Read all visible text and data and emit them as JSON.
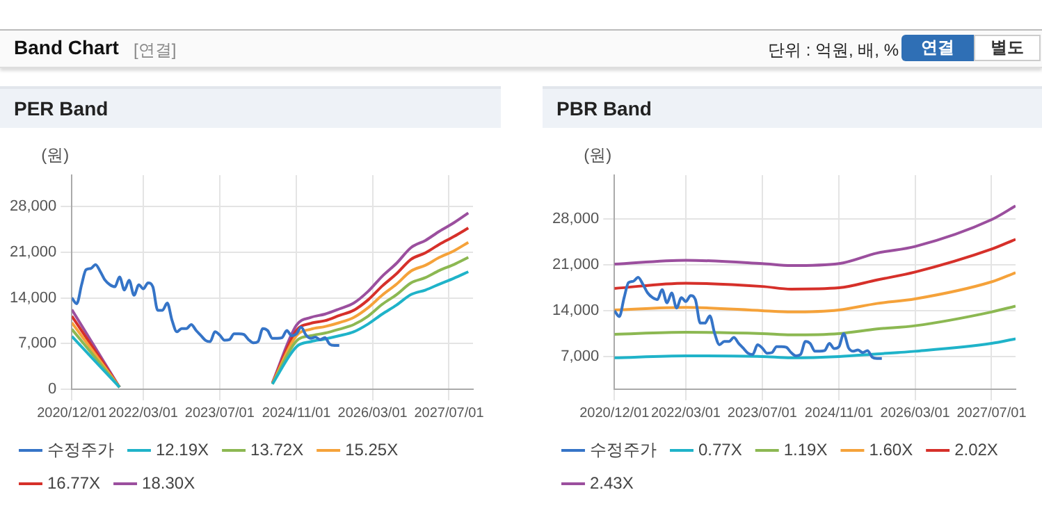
{
  "chart_data": [
    {
      "type": "line",
      "title": "PER Band",
      "ylabel": "(원)",
      "annotations": [
        "Band Chart",
        "[연결]",
        "단위 : 억원, 배, %",
        "연결",
        "별도"
      ],
      "grid": true,
      "legend": "bottom",
      "marker": "none",
      "xlim": [
        "2020-12-01",
        "2027-12-01"
      ],
      "xticks": [
        {
          "value": "2020-12-01",
          "label": "2020/12/01"
        },
        {
          "value": "2022-03-01",
          "label": "2022/03/01"
        },
        {
          "value": "2023-07-01",
          "label": "2023/07/01"
        },
        {
          "value": "2024-11-01",
          "label": "2024/11/01"
        },
        {
          "value": "2026-03-01",
          "label": "2026/03/01"
        },
        {
          "value": "2027-07-01",
          "label": "2027/07/01"
        }
      ],
      "ylim": [
        0,
        32800
      ],
      "yticks": [
        0,
        {
          "value": 7000,
          "label": "7,000"
        },
        {
          "value": 14000,
          "label": "14,000"
        },
        {
          "value": 21000,
          "label": "21,000"
        },
        {
          "value": 28000,
          "label": "28,000"
        }
      ],
      "x": [
        "2020-12",
        "2021-01",
        "2021-02",
        "2021-03",
        "2021-04",
        "2021-05",
        "2021-06",
        "2021-07",
        "2021-08",
        "2021-09",
        "2021-10",
        "2021-11",
        "2021-12",
        "2022-01",
        "2022-02",
        "2022-03",
        "2022-04",
        "2022-05",
        "2022-06",
        "2022-07",
        "2022-08",
        "2022-09",
        "2022-10",
        "2022-11",
        "2022-12",
        "2023-01",
        "2023-02",
        "2023-03",
        "2023-04",
        "2023-05",
        "2023-06",
        "2023-07",
        "2023-08",
        "2023-09",
        "2023-10",
        "2023-11",
        "2023-12",
        "2024-01",
        "2024-02",
        "2024-03",
        "2024-04",
        "2024-05",
        "2024-06",
        "2024-07",
        "2024-08",
        "2024-09",
        "2024-10",
        "2024-11",
        "2024-12",
        "2025-01",
        "2025-02",
        "2025-03",
        "2025-04",
        "2025-05",
        "2025-06",
        "2025-07",
        "2025-08"
      ],
      "series": [
        {
          "name": "수정주가",
          "color": "#3574c7",
          "values": [
            14000,
            13100,
            16000,
            18300,
            18500,
            19100,
            18000,
            16700,
            16000,
            15700,
            17200,
            15200,
            16700,
            14400,
            16000,
            15400,
            16300,
            15700,
            12100,
            12100,
            13200,
            10500,
            8800,
            9300,
            9300,
            9900,
            9000,
            8300,
            7500,
            7300,
            8800,
            8300,
            7500,
            7600,
            8500,
            8500,
            8400,
            7600,
            7100,
            7300,
            9300,
            9000,
            7800,
            7800,
            7900,
            9000,
            8200,
            8500,
            9500,
            8300,
            7800,
            8000,
            7600,
            7900,
            6900,
            6700,
            6700
          ]
        },
        {
          "name": "12.19X",
          "color": "#1fb3c9",
          "x": [
            "2020-12",
            "2021-10",
            "2023-01",
            "2024-06",
            "2024-11",
            "2025-02",
            "2025-05",
            "2025-08",
            "2025-11",
            "2026-02",
            "2026-05",
            "2026-08",
            "2026-11",
            "2027-02",
            "2027-05",
            "2027-08",
            "2027-11"
          ],
          "values": [
            8100,
            300,
            null,
            800,
            6500,
            7300,
            7700,
            8200,
            8800,
            10000,
            11500,
            12900,
            14500,
            15200,
            16100,
            17000,
            18000
          ]
        },
        {
          "name": "13.72X",
          "color": "#8cb852",
          "x": [
            "2020-12",
            "2021-10",
            "2023-01",
            "2024-06",
            "2024-11",
            "2025-02",
            "2025-05",
            "2025-08",
            "2025-11",
            "2026-02",
            "2026-05",
            "2026-08",
            "2026-11",
            "2027-02",
            "2027-05",
            "2027-08",
            "2027-11"
          ],
          "values": [
            9200,
            300,
            null,
            800,
            7400,
            8200,
            8600,
            9200,
            9900,
            11200,
            13000,
            14500,
            16300,
            17100,
            18200,
            19100,
            20200
          ]
        },
        {
          "name": "15.25X",
          "color": "#f5a23a",
          "x": [
            "2020-12",
            "2021-10",
            "2023-01",
            "2024-06",
            "2024-11",
            "2025-02",
            "2025-05",
            "2025-08",
            "2025-11",
            "2026-02",
            "2026-05",
            "2026-08",
            "2026-11",
            "2027-02",
            "2027-05",
            "2027-08",
            "2027-11"
          ],
          "values": [
            10200,
            300,
            null,
            900,
            8200,
            9200,
            9600,
            10200,
            11000,
            12500,
            14400,
            16100,
            18100,
            19000,
            20200,
            21200,
            22500
          ]
        },
        {
          "name": "16.77X",
          "color": "#d6302a",
          "x": [
            "2020-12",
            "2021-10",
            "2023-01",
            "2024-06",
            "2024-11",
            "2025-02",
            "2025-05",
            "2025-08",
            "2025-11",
            "2026-02",
            "2026-05",
            "2026-08",
            "2026-11",
            "2027-02",
            "2027-05",
            "2027-08",
            "2027-11"
          ],
          "values": [
            11200,
            300,
            null,
            900,
            9000,
            10100,
            10500,
            11300,
            12100,
            13700,
            15800,
            17700,
            19900,
            20900,
            22200,
            23400,
            24700
          ]
        },
        {
          "name": "18.30X",
          "color": "#9b4f9e",
          "x": [
            "2020-12",
            "2021-10",
            "2023-01",
            "2024-06",
            "2024-11",
            "2025-02",
            "2025-05",
            "2025-08",
            "2025-11",
            "2026-02",
            "2026-05",
            "2026-08",
            "2026-11",
            "2027-02",
            "2027-05",
            "2027-08",
            "2027-11"
          ],
          "values": [
            12200,
            300,
            null,
            1000,
            9800,
            11000,
            11500,
            12300,
            13200,
            15000,
            17300,
            19300,
            21700,
            22800,
            24200,
            25500,
            27000
          ]
        }
      ]
    },
    {
      "type": "line",
      "title": "PBR Band",
      "ylabel": "(원)",
      "grid": true,
      "legend": "bottom",
      "marker": "none",
      "xlim": [
        "2020-12-01",
        "2027-12-01"
      ],
      "xticks": [
        {
          "value": "2020-12-01",
          "label": "2020/12/01"
        },
        {
          "value": "2022-03-01",
          "label": "2022/03/01"
        },
        {
          "value": "2023-07-01",
          "label": "2023/07/01"
        },
        {
          "value": "2024-11-01",
          "label": "2024/11/01"
        },
        {
          "value": "2026-03-01",
          "label": "2026/03/01"
        },
        {
          "value": "2027-07-01",
          "label": "2027/07/01"
        }
      ],
      "ylim": [
        2000,
        34700
      ],
      "yticks": [
        {
          "value": 7000,
          "label": "7,000"
        },
        {
          "value": 14000,
          "label": "14,000"
        },
        {
          "value": 21000,
          "label": "21,000"
        },
        {
          "value": 28000,
          "label": "28,000"
        }
      ],
      "x": [
        "2020-12",
        "2021-01",
        "2021-02",
        "2021-03",
        "2021-04",
        "2021-05",
        "2021-06",
        "2021-07",
        "2021-08",
        "2021-09",
        "2021-10",
        "2021-11",
        "2021-12",
        "2022-01",
        "2022-02",
        "2022-03",
        "2022-04",
        "2022-05",
        "2022-06",
        "2022-07",
        "2022-08",
        "2022-09",
        "2022-10",
        "2022-11",
        "2022-12",
        "2023-01",
        "2023-02",
        "2023-03",
        "2023-04",
        "2023-05",
        "2023-06",
        "2023-07",
        "2023-08",
        "2023-09",
        "2023-10",
        "2023-11",
        "2023-12",
        "2024-01",
        "2024-02",
        "2024-03",
        "2024-04",
        "2024-05",
        "2024-06",
        "2024-07",
        "2024-08",
        "2024-09",
        "2024-10",
        "2024-11",
        "2024-12",
        "2025-01",
        "2025-02",
        "2025-03",
        "2025-04",
        "2025-05",
        "2025-06",
        "2025-07",
        "2025-08"
      ],
      "series": [
        {
          "name": "수정주가",
          "color": "#3574c7",
          "values": [
            14000,
            13100,
            16000,
            18300,
            18500,
            19100,
            18000,
            16700,
            16000,
            15700,
            17200,
            15200,
            16700,
            14400,
            16000,
            15400,
            16300,
            15700,
            12100,
            12100,
            13200,
            10500,
            8800,
            9300,
            9300,
            9900,
            9000,
            8300,
            7500,
            7300,
            8800,
            8300,
            7500,
            7600,
            8500,
            8500,
            8400,
            7600,
            7100,
            7300,
            9300,
            9000,
            7800,
            7800,
            7900,
            9000,
            8200,
            8500,
            10500,
            8300,
            7800,
            8000,
            7600,
            7900,
            6900,
            6700,
            6700
          ]
        },
        {
          "name": "0.77X",
          "color": "#1fb3c9",
          "x": [
            "2020-12",
            "2022-03",
            "2023-07",
            "2024-01",
            "2024-11",
            "2025-07",
            "2026-03",
            "2027-07",
            "2027-12"
          ],
          "values": [
            6800,
            7100,
            7000,
            6800,
            7000,
            7400,
            7800,
            9000,
            9700
          ]
        },
        {
          "name": "1.19X",
          "color": "#8cb852",
          "x": [
            "2020-12",
            "2022-03",
            "2023-07",
            "2024-01",
            "2024-11",
            "2025-07",
            "2026-03",
            "2027-07",
            "2027-12"
          ],
          "values": [
            10400,
            10700,
            10500,
            10300,
            10500,
            11200,
            11700,
            13800,
            14700
          ]
        },
        {
          "name": "1.60X",
          "color": "#f5a23a",
          "x": [
            "2020-12",
            "2022-03",
            "2023-07",
            "2024-01",
            "2024-11",
            "2025-07",
            "2026-03",
            "2027-07",
            "2027-12"
          ],
          "values": [
            14100,
            14500,
            14000,
            13800,
            14100,
            15100,
            15800,
            18400,
            19800
          ]
        },
        {
          "name": "2.02X",
          "color": "#d6302a",
          "x": [
            "2020-12",
            "2022-03",
            "2023-07",
            "2024-01",
            "2024-11",
            "2025-07",
            "2026-03",
            "2027-07",
            "2027-12"
          ],
          "values": [
            17400,
            18200,
            17700,
            17300,
            17500,
            18700,
            19900,
            23400,
            24900
          ]
        },
        {
          "name": "2.43X",
          "color": "#9b4f9e",
          "x": [
            "2020-12",
            "2022-03",
            "2023-07",
            "2024-01",
            "2024-11",
            "2025-07",
            "2026-03",
            "2027-07",
            "2027-12"
          ],
          "values": [
            21100,
            21700,
            21200,
            20900,
            21200,
            22800,
            23800,
            27900,
            30000
          ]
        }
      ]
    }
  ]
}
